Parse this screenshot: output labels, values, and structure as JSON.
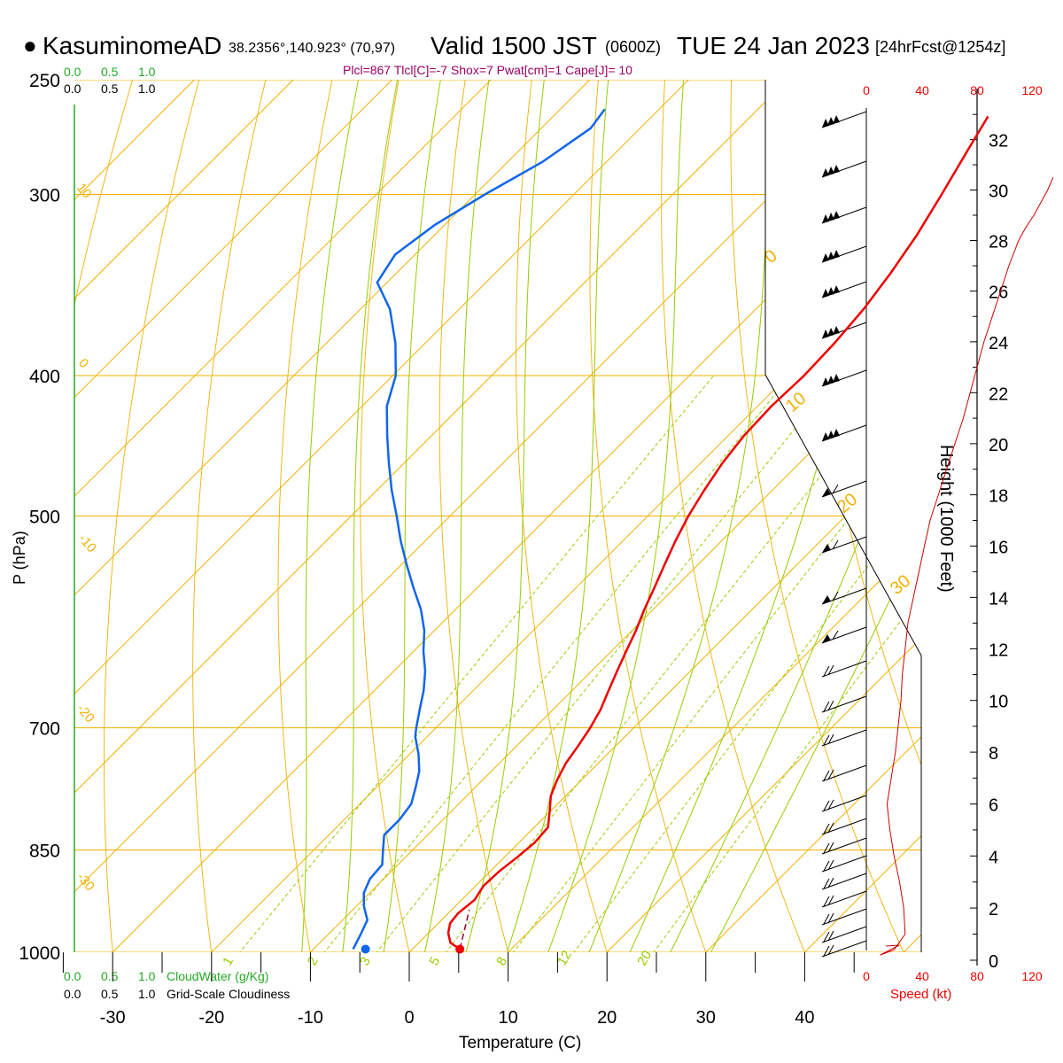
{
  "header": {
    "bullet": "●",
    "station": "KasuminomeAD",
    "coords": "38.2356°,140.923° (70,97)",
    "valid_label": "Valid 1500 JST",
    "utc": "(0600Z)",
    "date": "TUE 24 Jan 2023",
    "forecast": "[24hrFcst@1254z]",
    "indices": "Plcl=867 Tlcl[C]=-7 Shox=7 Pwat[cm]=1 Cape[J]= 10"
  },
  "cloud_scale": {
    "top_green": [
      "0.0",
      "0.5",
      "1.0"
    ],
    "top_black": [
      "0.0",
      "0.5",
      "1.0"
    ],
    "bottom_green": [
      "0.0",
      "0.5",
      "1.0"
    ],
    "bottom_black": [
      "0.0",
      "0.5",
      "1.0"
    ],
    "cloudwater_label": "CloudWater (g/Kg)",
    "cloudiness_label": "Grid-Scale Cloudiness"
  },
  "speed_axis": {
    "ticks": [
      "0",
      "40",
      "80",
      "120"
    ],
    "label": "Speed (kt)"
  },
  "height_axis": {
    "label": "Height (1000 Feet)",
    "ticks": [
      "0",
      "2",
      "4",
      "6",
      "8",
      "10",
      "12",
      "14",
      "16",
      "18",
      "20",
      "22",
      "24",
      "26",
      "28",
      "30",
      "32"
    ]
  },
  "colors": {
    "temperature": "#ee0000",
    "dewpoint": "#1166ee",
    "isotherm": "#f0b000",
    "dry_adiabat": "#f0b000",
    "moist_adiabat": "#99cc00",
    "mixing_ratio": "#99cc00",
    "cloudwater": "#22aa22",
    "speed": "#cc0000",
    "indices": "#990066"
  },
  "chart_data": {
    "type": "skew-t",
    "xlabel": "Temperature (C)",
    "ylabel": "P (hPa)",
    "x_ticks": [
      "-30",
      "-20",
      "-10",
      "0",
      "10",
      "20",
      "30",
      "40"
    ],
    "p_ticks": [
      "250",
      "300",
      "400",
      "500",
      "700",
      "850",
      "1000"
    ],
    "p_range": [
      250,
      1050
    ],
    "t_range": [
      -34,
      36
    ],
    "dry_adiabat_labels": [
      "10",
      "0",
      "-10",
      "-20",
      "-30",
      "0",
      "10",
      "20",
      "30"
    ],
    "mixing_ratio_labels": [
      "1",
      "2",
      "3",
      "5",
      "8",
      "12",
      "20"
    ],
    "temperature_profile": {
      "name": "Temperature",
      "points": [
        [
          995,
          4.8
        ],
        [
          985,
          3.2
        ],
        [
          970,
          2.0
        ],
        [
          955,
          1.2
        ],
        [
          940,
          1.0
        ],
        [
          920,
          1.3
        ],
        [
          900,
          0.8
        ],
        [
          880,
          0.9
        ],
        [
          860,
          1.3
        ],
        [
          840,
          1.6
        ],
        [
          820,
          1.4
        ],
        [
          800,
          0.0
        ],
        [
          780,
          -1.5
        ],
        [
          760,
          -2.5
        ],
        [
          740,
          -3.3
        ],
        [
          720,
          -3.8
        ],
        [
          700,
          -4.4
        ],
        [
          680,
          -5.2
        ],
        [
          660,
          -6.3
        ],
        [
          640,
          -7.4
        ],
        [
          620,
          -8.5
        ],
        [
          600,
          -9.6
        ],
        [
          580,
          -10.9
        ],
        [
          560,
          -12.1
        ],
        [
          540,
          -13.4
        ],
        [
          520,
          -14.7
        ],
        [
          500,
          -15.9
        ],
        [
          480,
          -16.9
        ],
        [
          460,
          -17.8
        ],
        [
          440,
          -18.4
        ],
        [
          420,
          -18.6
        ],
        [
          400,
          -18.4
        ],
        [
          380,
          -18.6
        ],
        [
          360,
          -19.1
        ],
        [
          340,
          -20.0
        ],
        [
          320,
          -21.2
        ],
        [
          300,
          -22.8
        ],
        [
          280,
          -24.6
        ],
        [
          265,
          -26.0
        ]
      ]
    },
    "dewpoint_profile": {
      "name": "Dewpoint",
      "points": [
        [
          995,
          -6.0
        ],
        [
          970,
          -6.8
        ],
        [
          950,
          -7.5
        ],
        [
          930,
          -9.2
        ],
        [
          910,
          -10.6
        ],
        [
          890,
          -11.4
        ],
        [
          870,
          -11.6
        ],
        [
          850,
          -13.0
        ],
        [
          830,
          -14.4
        ],
        [
          810,
          -14.4
        ],
        [
          790,
          -14.8
        ],
        [
          770,
          -16.0
        ],
        [
          750,
          -17.3
        ],
        [
          730,
          -19.1
        ],
        [
          710,
          -21.2
        ],
        [
          700,
          -22.0
        ],
        [
          680,
          -23.5
        ],
        [
          660,
          -25.0
        ],
        [
          640,
          -26.8
        ],
        [
          620,
          -29.0
        ],
        [
          600,
          -31.0
        ],
        [
          580,
          -33.5
        ],
        [
          560,
          -36.5
        ],
        [
          540,
          -39.5
        ],
        [
          520,
          -42.5
        ],
        [
          500,
          -45.4
        ],
        [
          480,
          -48.5
        ],
        [
          460,
          -51.5
        ],
        [
          440,
          -54.5
        ],
        [
          420,
          -57.5
        ],
        [
          400,
          -59.7
        ],
        [
          380,
          -63.0
        ],
        [
          360,
          -67.0
        ],
        [
          345,
          -71.0
        ],
        [
          330,
          -72.0
        ],
        [
          315,
          -71.0
        ],
        [
          300,
          -69.0
        ],
        [
          285,
          -66.5
        ],
        [
          270,
          -65.0
        ],
        [
          262,
          -65.5
        ]
      ]
    },
    "surface_points": {
      "temperature": [
        995,
        4.8
      ],
      "dewpoint": [
        995,
        -6.0
      ]
    },
    "lcl_parcel": [
      [
        995,
        4.8
      ],
      [
        935,
        1.8
      ]
    ],
    "speed_profile_kt": [
      [
        0.2,
        10
      ],
      [
        0.4,
        20
      ],
      [
        1,
        28
      ],
      [
        2,
        27
      ],
      [
        3,
        24
      ],
      [
        4,
        20
      ],
      [
        5,
        17
      ],
      [
        6,
        15
      ],
      [
        7,
        18
      ],
      [
        8,
        21
      ],
      [
        9,
        23
      ],
      [
        10,
        25
      ],
      [
        11,
        26
      ],
      [
        12,
        28
      ],
      [
        13,
        30
      ],
      [
        14,
        34
      ],
      [
        15,
        38
      ],
      [
        16,
        42
      ],
      [
        17,
        46
      ],
      [
        18,
        52
      ],
      [
        19,
        58
      ],
      [
        20,
        64
      ],
      [
        21,
        70
      ],
      [
        22,
        75
      ],
      [
        23,
        80
      ],
      [
        24,
        85
      ],
      [
        25,
        91
      ],
      [
        26,
        97
      ],
      [
        27,
        103
      ],
      [
        28,
        110
      ],
      [
        28.5,
        115
      ],
      [
        29,
        121
      ],
      [
        29.5,
        126
      ],
      [
        30,
        131
      ],
      [
        30.5,
        135
      ]
    ]
  }
}
